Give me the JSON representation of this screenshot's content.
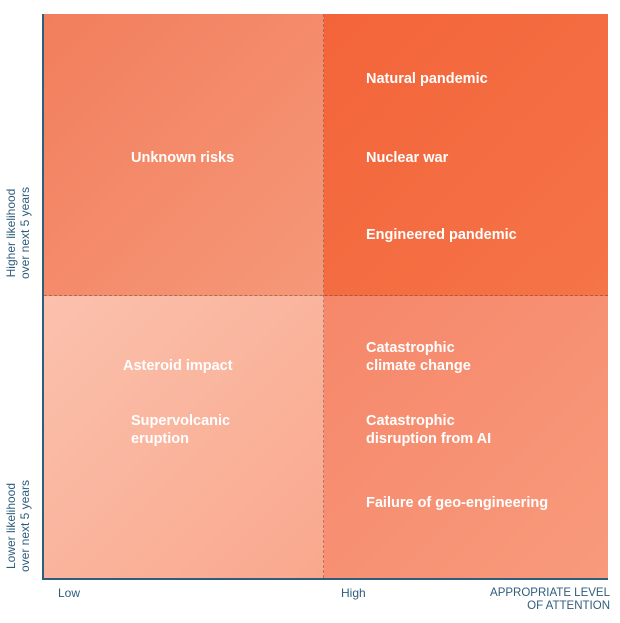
{
  "axes": {
    "y_high_label": "Higher likelihood\nover next 5 years",
    "y_low_label": "Lower likelihood\nover next 5 years",
    "x_low_label": "Low",
    "x_high_label": "High",
    "x_title": "APPROPRIATE LEVEL\nOF ATTENTION"
  },
  "quadrants": {
    "top_left": {
      "risks": [
        "Unknown risks"
      ]
    },
    "top_right": {
      "risks": [
        "Natural pandemic",
        "Nuclear war",
        "Engineered pandemic"
      ]
    },
    "bottom_left": {
      "risks": [
        "Asteroid impact",
        "Supervolcanic\neruption"
      ]
    },
    "bottom_right": {
      "risks": [
        "Catastrophic\nclimate change",
        "Catastrophic\ndisruption from AI",
        "Failure of geo-engineering"
      ]
    }
  },
  "colors": {
    "top_left": "#f48a68",
    "top_right": "#f46a3d",
    "bottom_left": "#fab9a4",
    "bottom_right": "#f7926f",
    "axis": "#2f5d7c"
  }
}
